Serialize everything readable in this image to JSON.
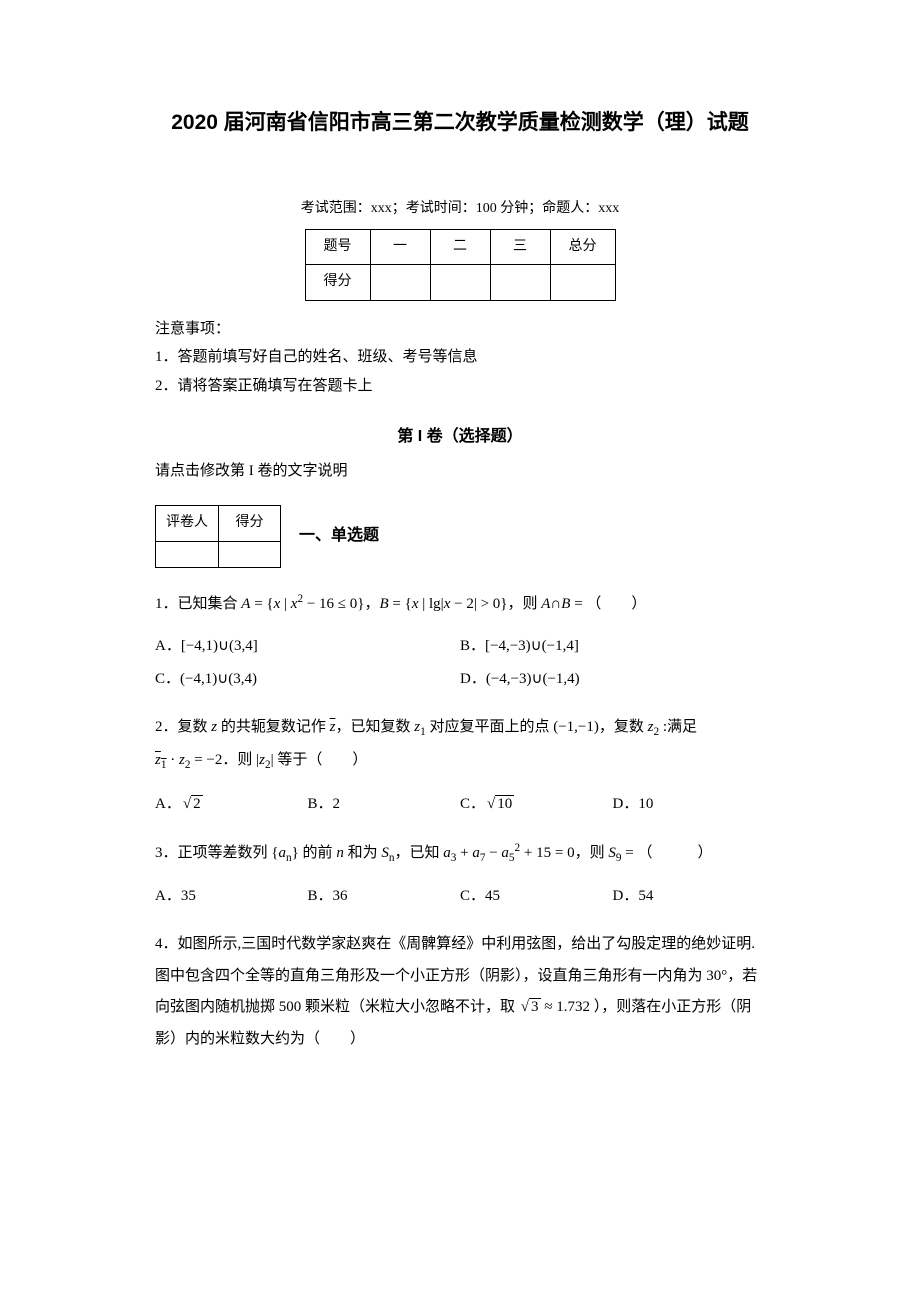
{
  "title": "2020 届河南省信阳市高三第二次教学质量检测数学（理）试题",
  "exam_info": "考试范围：xxx；考试时间：100 分钟；命题人：xxx",
  "score_table": {
    "headers": [
      "题号",
      "一",
      "二",
      "三",
      "总分"
    ],
    "row_label": "得分"
  },
  "notice": {
    "title": "注意事项：",
    "items": [
      "1．答题前填写好自己的姓名、班级、考号等信息",
      "2．请将答案正确填写在答题卡上"
    ]
  },
  "section1": {
    "title": "第 I 卷（选择题）",
    "note": "请点击修改第 I 卷的文字说明"
  },
  "grader": {
    "col1": "评卷人",
    "col2": "得分"
  },
  "subsection_title": "一、单选题",
  "q1": {
    "stem_prefix": "1．已知集合 ",
    "stem_suffix": "（　　）",
    "A_label": "A．",
    "B_label": "B．",
    "C_label": "C．",
    "D_label": "D．"
  },
  "q2": {
    "stem_p1": "2．复数 ",
    "stem_p2": " 的共轭复数记作 ",
    "stem_p3": "，已知复数 ",
    "stem_p4": " 对应复平面上的点 ",
    "stem_p5": "，复数 ",
    "stem_p6": " :满足",
    "line2_p1": "．则 ",
    "line2_p2": " 等于（　　）",
    "A_label": "A．",
    "B_label": "B．",
    "B_val": "2",
    "C_label": "C．",
    "D_label": "D．",
    "D_val": "10"
  },
  "q3": {
    "stem_p1": "3．正项等差数列 ",
    "stem_p2": " 的前 ",
    "stem_p3": " 和为 ",
    "stem_p4": "，已知 ",
    "stem_p5": "，则 ",
    "stem_p6": "（　　　）",
    "A": "A．35",
    "B": "B．36",
    "C": "C．45",
    "D": "D．54"
  },
  "q4": {
    "text": "4．如图所示,三国时代数学家赵爽在《周髀算经》中利用弦图，给出了勾股定理的绝妙证明.图中包含四个全等的直角三角形及一个小正方形（阴影），设直角三角形有一内角为 30°，若向弦图内随机抛掷 500 颗米粒（米粒大小忽略不计，取 ",
    "approx": " ≈ 1.732 ），则落在小正方形（阴影）内的米粒数大约为（　　）"
  }
}
